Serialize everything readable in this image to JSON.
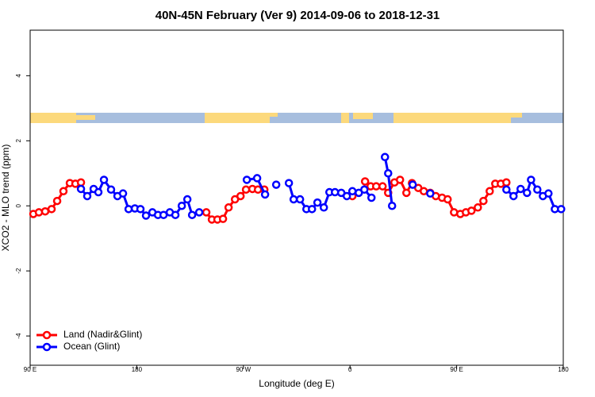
{
  "chart_data": {
    "type": "line",
    "title": "40N-45N February (Ver 9)   2014-09-06 to 2018-12-31",
    "xlabel": "Longitude (deg E)",
    "ylabel": "XCO2 - MLO trend (ppm)",
    "xlim": [
      90,
      540
    ],
    "ylim": [
      -4.9,
      5.4
    ],
    "xticks": [
      {
        "value": 90,
        "label": "90 E"
      },
      180,
      {
        "value": 270,
        "label": "90 W"
      },
      {
        "value": 360,
        "label": "0"
      },
      {
        "value": 450,
        "label": "90 E"
      },
      {
        "value": 540,
        "label": "180"
      }
    ],
    "yticks": [
      -4,
      -2,
      0,
      2,
      4
    ],
    "legend": "bottom-left",
    "series": [
      {
        "name": "Land (Nadir&Glint)",
        "color": "#ff0000",
        "x": [
          92.7,
          97.4,
          102.7,
          108.1,
          112.8,
          118.1,
          123.5,
          128.2,
          132.9,
          null,
          238.7,
          243.4,
          248.1,
          252.8,
          257.5,
          262.9,
          267.6,
          272.2,
          277.6,
          282.3,
          287.7,
          null,
          362,
          null,
          372.7,
          377.4,
          382.1,
          387.5,
          392.2,
          397.5,
          402.2,
          407.6,
          412.3,
          417.6,
          422.3,
          427.7,
          432.4,
          437.7,
          442.4,
          447.8,
          453.1,
          457.8,
          462.5,
          467.9,
          472.6,
          477.9,
          482.6,
          487.3,
          492
        ],
        "values": [
          -0.25,
          -0.2,
          -0.17,
          -0.1,
          0.15,
          0.45,
          0.7,
          0.68,
          0.72,
          null,
          -0.2,
          -0.42,
          -0.42,
          -0.4,
          -0.05,
          0.2,
          0.3,
          0.5,
          0.52,
          0.5,
          0.5,
          null,
          0.3,
          null,
          0.75,
          0.6,
          0.6,
          0.6,
          0.4,
          0.72,
          0.8,
          0.4,
          0.7,
          0.55,
          0.45,
          0.4,
          0.3,
          0.25,
          0.2,
          -0.2,
          -0.25,
          -0.2,
          -0.15,
          -0.05,
          0.15,
          0.45,
          0.68,
          0.68,
          0.72
        ]
      },
      {
        "name": "Ocean (Glint)",
        "color": "#0000ff",
        "x": [
          132.9,
          138.2,
          143.6,
          147.6,
          152.3,
          158.3,
          163.7,
          168.4,
          173.1,
          178.4,
          183.1,
          187.8,
          193.2,
          197.9,
          202.6,
          207.9,
          212.6,
          218,
          222.7,
          226.7,
          232.7,
          null,
          272.9,
          281.6,
          288.3,
          null,
          297.7,
          null,
          308.4,
          312.4,
          317.8,
          323.2,
          327.9,
          332.5,
          337.9,
          342.6,
          347.3,
          352.6,
          357.3,
          362,
          367.4,
          372.1,
          378.1,
          null,
          389.5,
          392.2,
          395.5,
          null,
          412.9,
          null,
          427.7,
          null,
          492,
          498,
          504,
          509.4,
          512.8,
          518.1,
          522.8,
          527.5,
          532.9,
          538.2
        ],
        "values": [
          0.52,
          0.3,
          0.52,
          0.42,
          0.8,
          0.5,
          0.3,
          0.38,
          -0.1,
          -0.08,
          -0.1,
          -0.3,
          -0.2,
          -0.28,
          -0.28,
          -0.2,
          -0.28,
          0.0,
          0.2,
          -0.28,
          -0.2,
          null,
          0.8,
          0.85,
          0.35,
          null,
          0.65,
          null,
          0.7,
          0.2,
          0.2,
          -0.1,
          -0.1,
          0.1,
          -0.05,
          0.42,
          0.42,
          0.4,
          0.3,
          0.45,
          0.4,
          0.5,
          0.25,
          null,
          1.5,
          1.0,
          0.0,
          null,
          0.65,
          null,
          0.38,
          null,
          0.5,
          0.3,
          0.52,
          0.4,
          0.8,
          0.5,
          0.3,
          0.38,
          -0.1,
          -0.1
        ]
      }
    ]
  }
}
